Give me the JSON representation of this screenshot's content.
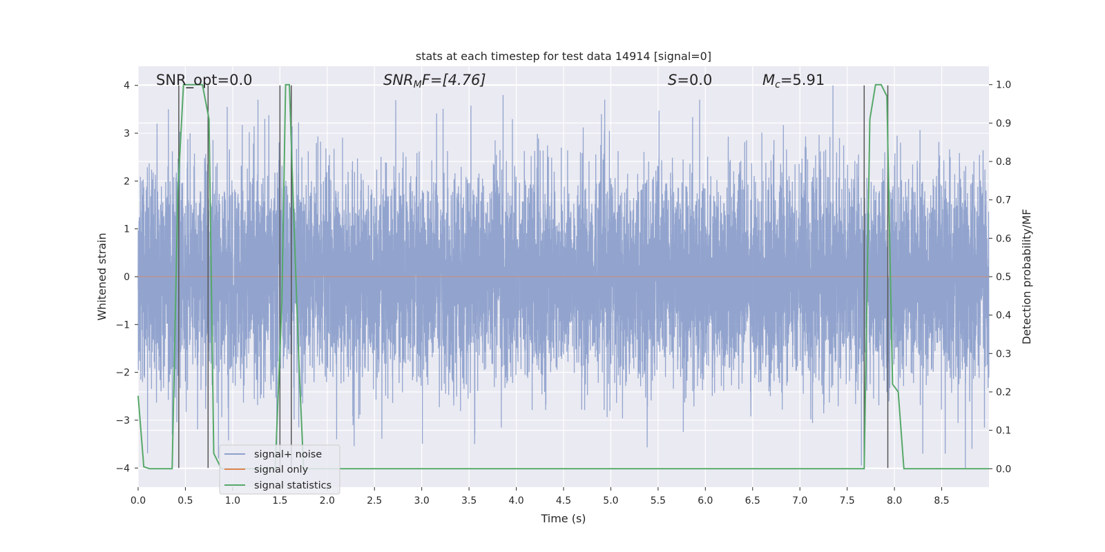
{
  "chart_data": {
    "type": "line",
    "title": "stats at each timestep for test data 14914 [signal=0]",
    "xlabel": "Time (s)",
    "ylabel": "Whitened strain",
    "y2label": "Detection probability/MF",
    "xlim": [
      0.0,
      9.0
    ],
    "ylim": [
      -4.4,
      4.4
    ],
    "y2lim": [
      -0.048,
      1.048
    ],
    "xticks": [
      "0.0",
      "0.5",
      "1.0",
      "1.5",
      "2.0",
      "2.5",
      "3.0",
      "3.5",
      "4.0",
      "4.5",
      "5.0",
      "5.5",
      "6.0",
      "6.5",
      "7.0",
      "7.5",
      "8.0",
      "8.5"
    ],
    "xtick_values": [
      0.0,
      0.5,
      1.0,
      1.5,
      2.0,
      2.5,
      3.0,
      3.5,
      4.0,
      4.5,
      5.0,
      5.5,
      6.0,
      6.5,
      7.0,
      7.5,
      8.0,
      8.5
    ],
    "yticks": [
      "4",
      "3",
      "2",
      "1",
      "0",
      "−1",
      "−2",
      "−3",
      "−4"
    ],
    "ytick_values": [
      4,
      3,
      2,
      1,
      0,
      -1,
      -2,
      -3,
      -4
    ],
    "y2ticks": [
      "1.0",
      "0.9",
      "0.8",
      "0.7",
      "0.6",
      "0.5",
      "0.4",
      "0.3",
      "0.2",
      "0.1",
      "0.0"
    ],
    "y2tick_values": [
      1.0,
      0.9,
      0.8,
      0.7,
      0.6,
      0.5,
      0.4,
      0.3,
      0.2,
      0.1,
      0.0
    ],
    "grid": true,
    "legend_placement": "lower-left",
    "legend": [
      "signal+ noise",
      "signal only",
      "signal statistics"
    ],
    "annotations": {
      "snr_opt": "SNR_opt=0.0",
      "snr_mf_main": "SNR",
      "snr_mf_sub": "M",
      "snr_mf_rest": "F=[4.76]",
      "s_main": "S",
      "s_rest": "=0.0",
      "mc_main": "M",
      "mc_sub": "c",
      "mc_rest": "=5.91"
    },
    "colors": {
      "noise": "#8da0cb",
      "signal_only": "#dd8452",
      "statistics": "#55a868",
      "background": "#eaeaf2",
      "grid": "#ffffff",
      "vlines": "#555555"
    },
    "series": [
      {
        "name": "signal+ noise",
        "sample_rate_hz": 1024,
        "duration_s": 9.0,
        "distribution": "whitened gaussian noise, std ~1",
        "extremes": [
          {
            "t": 0.2,
            "y": 3.2
          },
          {
            "t": 0.32,
            "y": 3.5
          },
          {
            "t": 0.55,
            "y": 3.0
          },
          {
            "t": 0.85,
            "y": -3.8
          },
          {
            "t": 1.34,
            "y": 3.3
          },
          {
            "t": 2.1,
            "y": -3.4
          },
          {
            "t": 3.56,
            "y": -3.5
          },
          {
            "t": 3.86,
            "y": 3.8
          },
          {
            "t": 4.9,
            "y": 3.4
          },
          {
            "t": 7.35,
            "y": 4.0
          },
          {
            "t": 7.65,
            "y": -3.95
          },
          {
            "t": 8.3,
            "y": -3.7
          },
          {
            "t": 8.75,
            "y": -4.0
          },
          {
            "t": 8.82,
            "y": -3.6
          }
        ]
      },
      {
        "name": "signal only",
        "x": [
          0.0,
          9.0
        ],
        "y": [
          0.0,
          0.0
        ]
      },
      {
        "name": "signal statistics",
        "axis": "y2",
        "x": [
          0.0,
          0.06,
          0.12,
          0.36,
          0.42,
          0.48,
          0.55,
          0.6,
          0.68,
          0.75,
          0.8,
          0.88,
          1.45,
          1.52,
          1.56,
          1.6,
          1.64,
          1.7,
          1.75,
          2.3,
          7.68,
          7.74,
          7.8,
          7.86,
          7.92,
          7.98,
          8.04,
          8.1,
          9.0
        ],
        "y": [
          0.19,
          0.005,
          0.0,
          0.0,
          0.72,
          1.0,
          1.0,
          1.0,
          1.0,
          0.91,
          0.04,
          0.0,
          0.0,
          0.43,
          1.0,
          1.0,
          0.7,
          0.28,
          0.0,
          0.0,
          0.0,
          0.91,
          1.0,
          1.0,
          0.97,
          0.22,
          0.2,
          0.0,
          0.0
        ]
      }
    ],
    "event_lines": [
      0.43,
      0.74,
      1.5,
      1.62,
      7.68,
      7.93
    ]
  }
}
